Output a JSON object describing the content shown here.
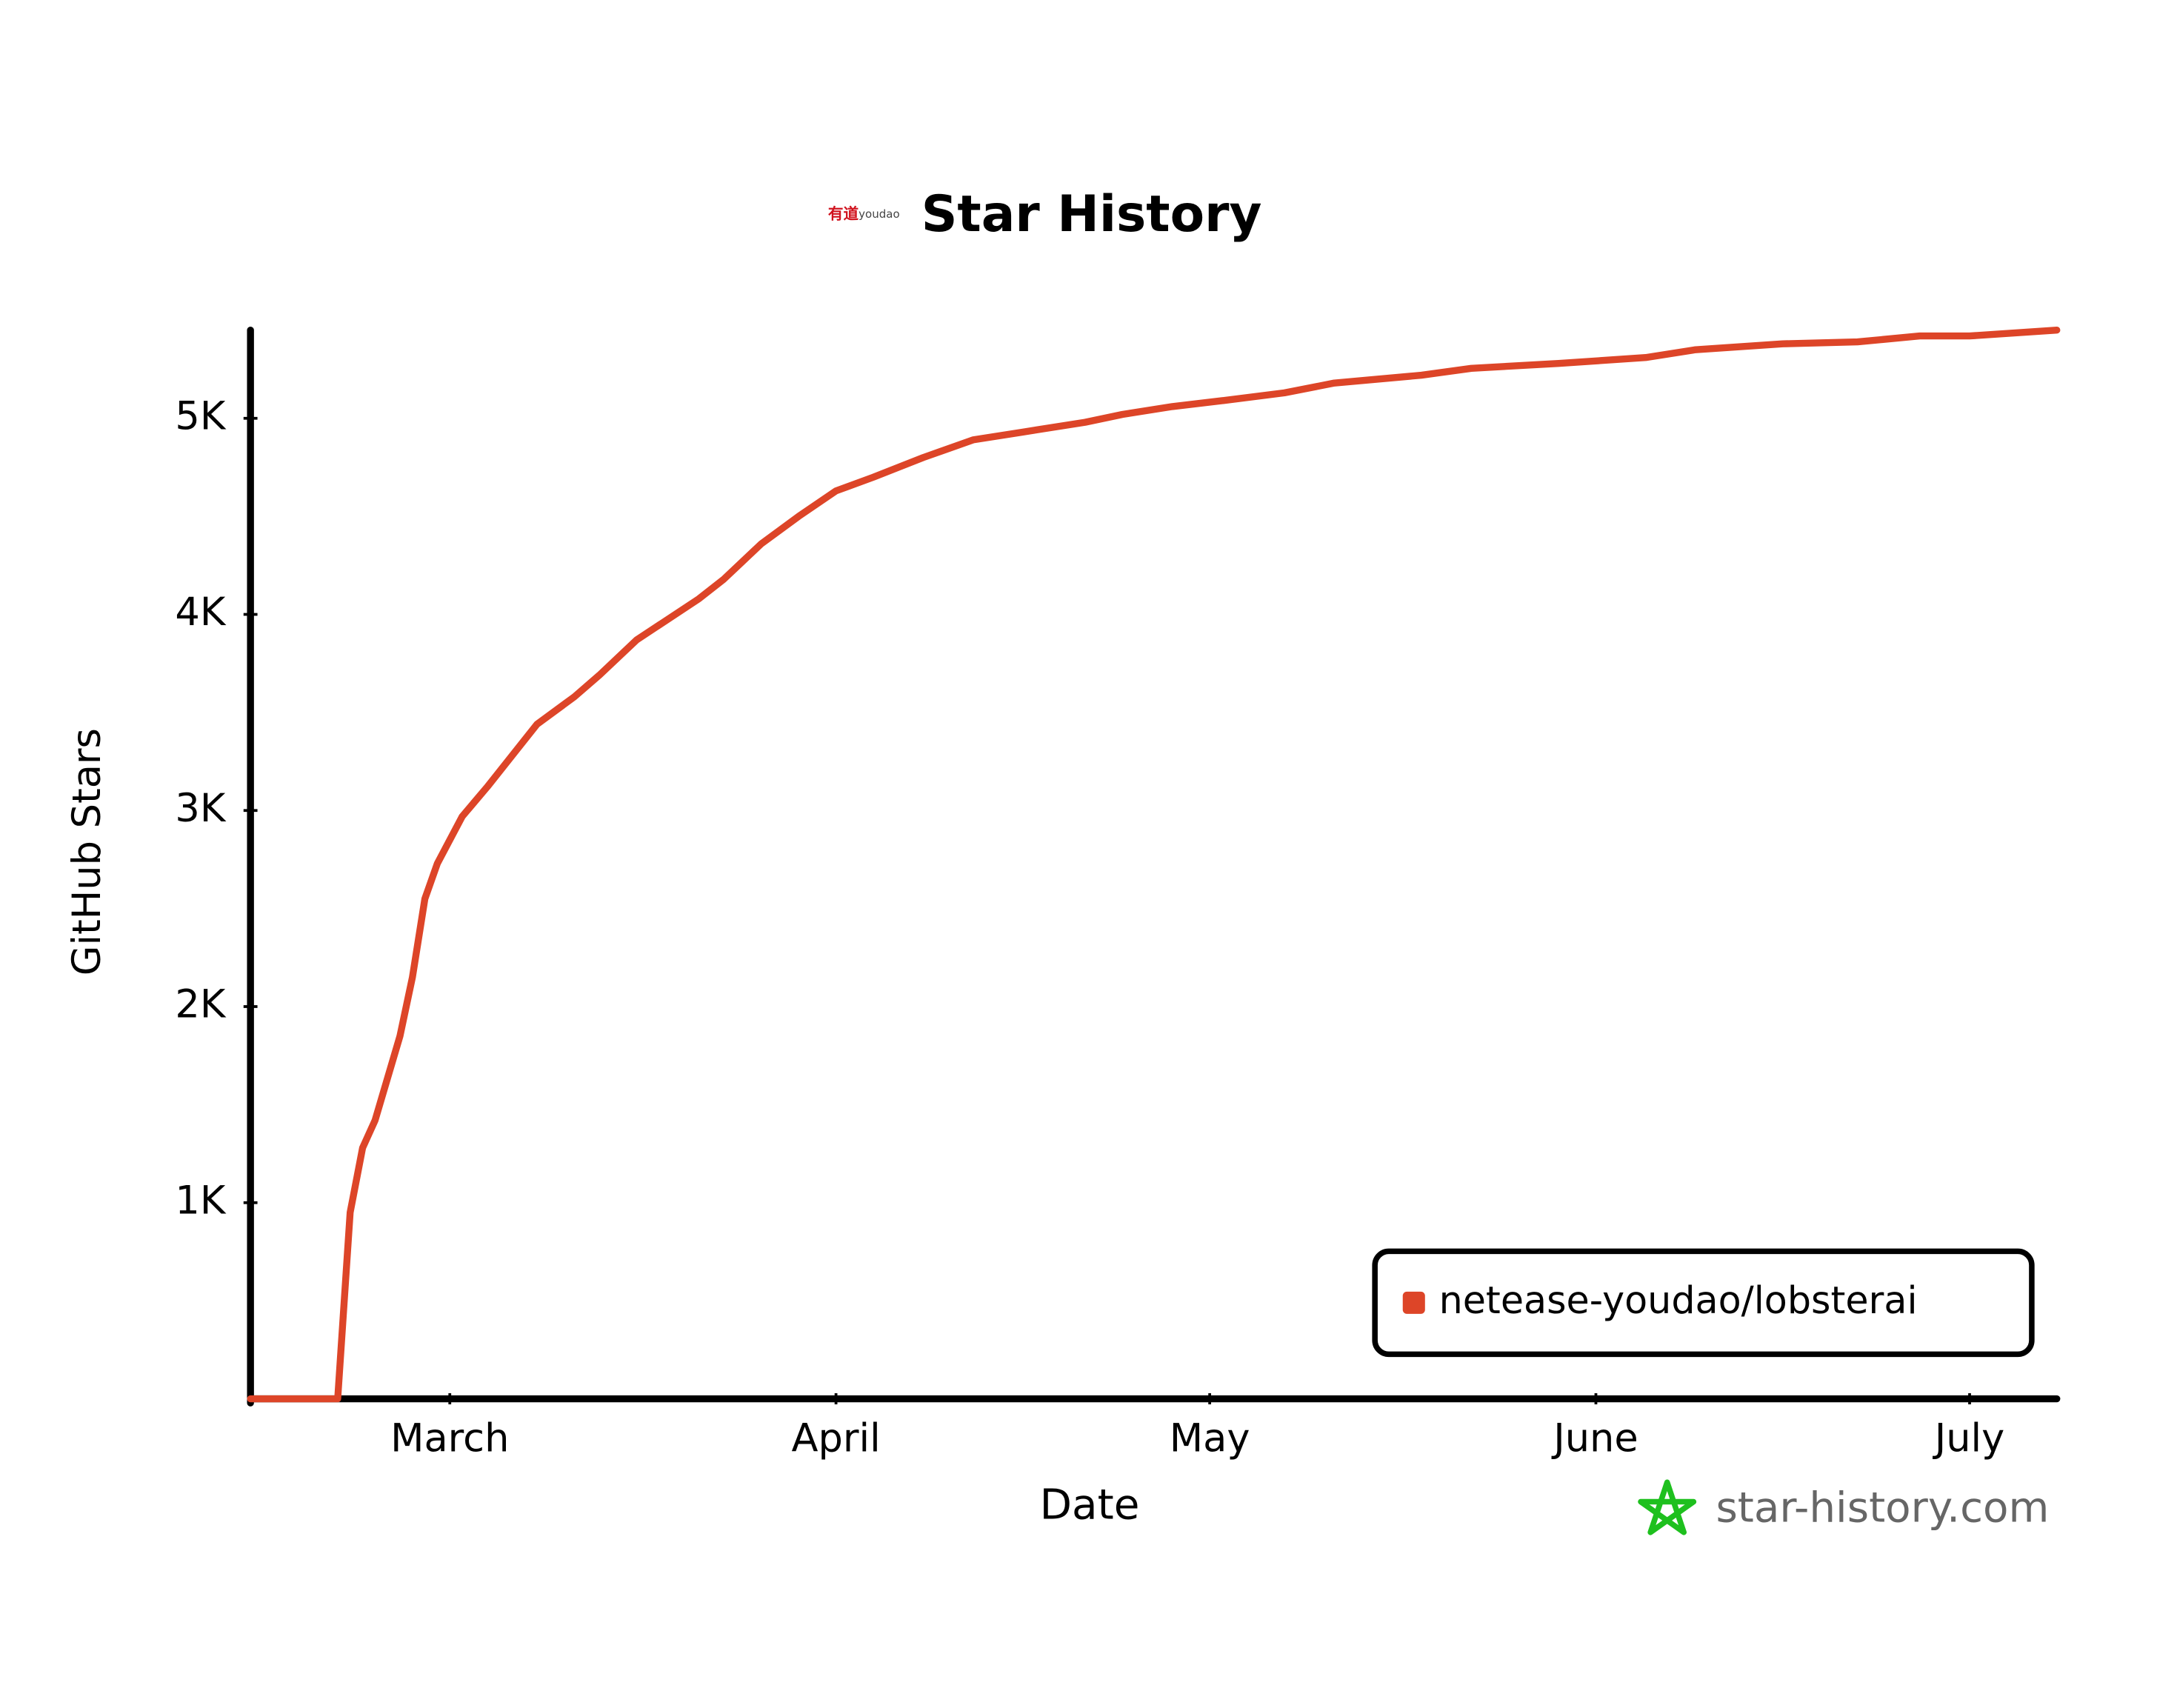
{
  "logo": [
    "有道",
    "youdao"
  ],
  "chart_data": {
    "type": "line",
    "title": "Star History",
    "x_label": "Date",
    "y_label": "GitHub Stars",
    "x": [
      0,
      7,
      8,
      9,
      10,
      12,
      13,
      14,
      15,
      17,
      19,
      23,
      26,
      28,
      31,
      36,
      38,
      41,
      44,
      47,
      50,
      54,
      58,
      62,
      67,
      70,
      74,
      78,
      83,
      87,
      94,
      98,
      105,
      112,
      116,
      123,
      129,
      134,
      138,
      145
    ],
    "series": [
      {
        "name": "netease-youdao/lobsterai",
        "color": "#dd4528",
        "values": [
          0,
          0,
          950,
          1280,
          1420,
          1850,
          2150,
          2550,
          2730,
          2970,
          3120,
          3440,
          3580,
          3690,
          3870,
          4080,
          4180,
          4360,
          4500,
          4630,
          4700,
          4800,
          4890,
          4930,
          4980,
          5020,
          5060,
          5090,
          5130,
          5180,
          5220,
          5255,
          5280,
          5310,
          5350,
          5380,
          5390,
          5420,
          5420,
          5450
        ]
      }
    ],
    "xlim": [
      0,
      145
    ],
    "xticks": [
      {
        "value": 16,
        "label": "March"
      },
      {
        "value": 47,
        "label": "April"
      },
      {
        "value": 77,
        "label": "May"
      },
      {
        "value": 108,
        "label": "June"
      },
      {
        "value": 138,
        "label": "July"
      }
    ],
    "ylim": [
      0,
      5450
    ],
    "yticks": [
      {
        "value": 1000,
        "label": "1K"
      },
      {
        "value": 2000,
        "label": "2K"
      },
      {
        "value": 3000,
        "label": "3K"
      },
      {
        "value": 4000,
        "label": "4K"
      },
      {
        "value": 5000,
        "label": "5K"
      }
    ],
    "grid": false,
    "legend": "lower right",
    "watermark": "star-history.com"
  }
}
